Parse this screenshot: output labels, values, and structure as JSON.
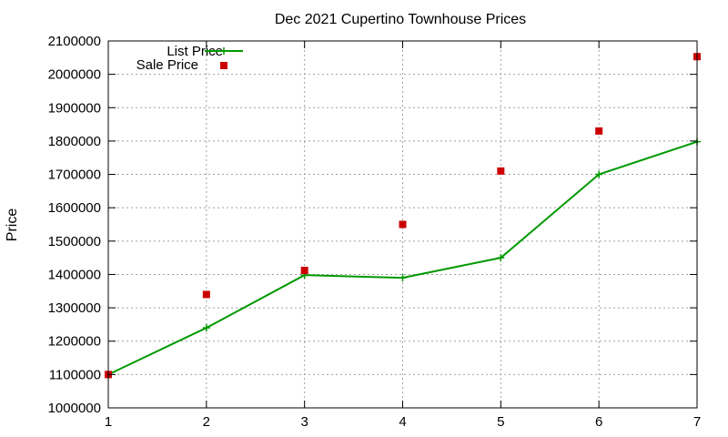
{
  "chart_data": {
    "type": "line",
    "title": "Dec 2021 Cupertino Townhouse Prices",
    "xlabel": "",
    "ylabel": "Price",
    "x": [
      1,
      2,
      3,
      4,
      5,
      6,
      7
    ],
    "xlim": [
      1,
      7
    ],
    "ylim": [
      1000000,
      2100000
    ],
    "xticks": [
      "1",
      "2",
      "3",
      "4",
      "5",
      "6",
      "7"
    ],
    "yticks": [
      "1000000",
      "1100000",
      "1200000",
      "1300000",
      "1400000",
      "1500000",
      "1600000",
      "1700000",
      "1800000",
      "1900000",
      "2000000",
      "2100000"
    ],
    "grid": true,
    "legend_position": "top-left",
    "series": [
      {
        "name": "List Price",
        "style": "line+cross",
        "color": "#009900",
        "values": [
          1100000,
          1240000,
          1398000,
          1390000,
          1450000,
          1700000,
          1798000
        ]
      },
      {
        "name": "Sale Price",
        "style": "square",
        "color": "#cc0000",
        "values": [
          1100000,
          1340000,
          1412000,
          1550000,
          1710000,
          1830000,
          2053000
        ]
      }
    ]
  }
}
